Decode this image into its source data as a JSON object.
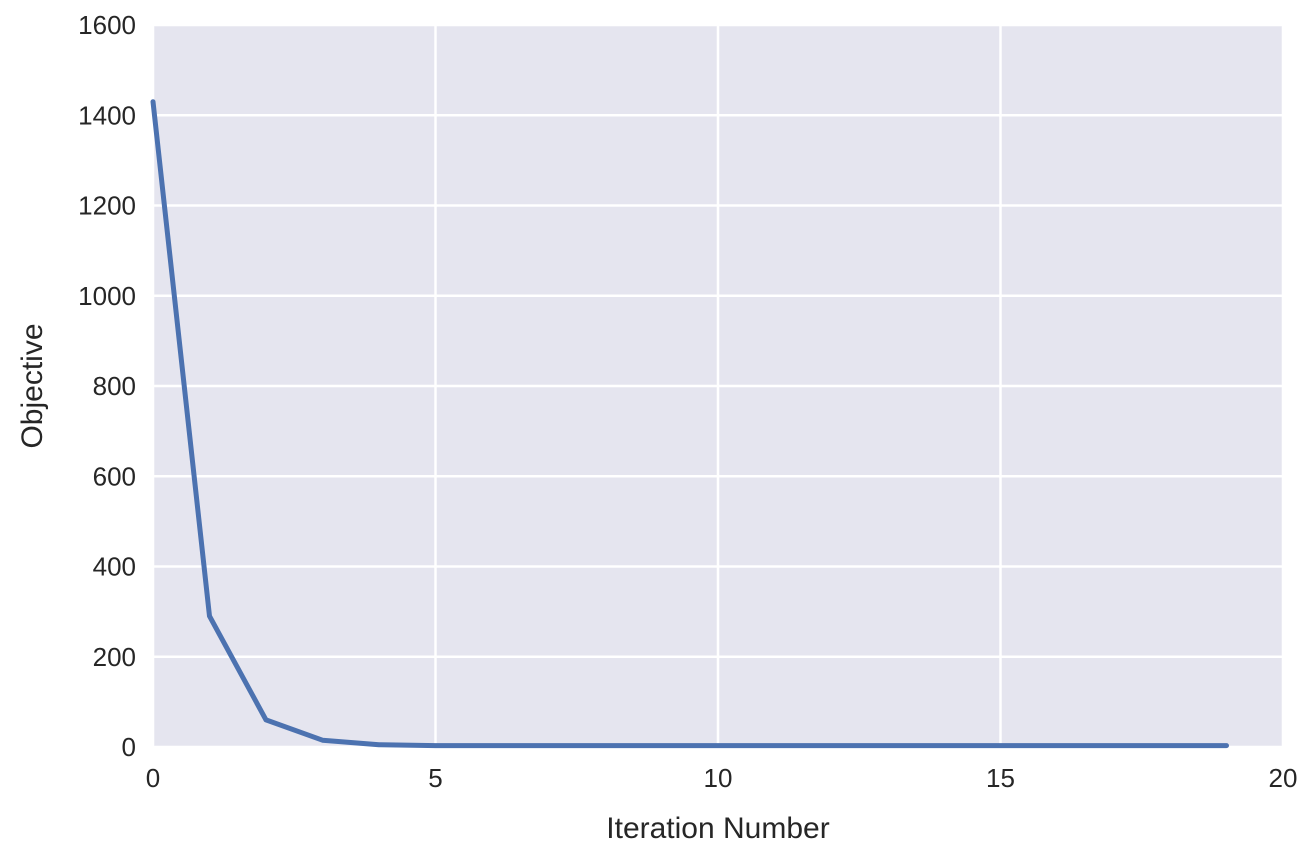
{
  "chart_data": {
    "type": "line",
    "title": "",
    "xlabel": "Iteration Number",
    "ylabel": "Objective",
    "xlim": [
      0,
      20
    ],
    "ylim": [
      0,
      1600
    ],
    "xticks": [
      0,
      5,
      10,
      15,
      20
    ],
    "yticks": [
      0,
      200,
      400,
      600,
      800,
      1000,
      1200,
      1400,
      1600
    ],
    "grid": true,
    "colors": {
      "background": "#e5e5ef",
      "grid": "#ffffff",
      "line": "#4c72b0"
    },
    "series": [
      {
        "x": [
          0,
          1,
          2,
          3,
          4,
          5,
          6,
          7,
          8,
          9,
          10,
          11,
          12,
          13,
          14,
          15,
          16,
          17,
          18,
          19
        ],
        "y": [
          1430,
          290,
          60,
          15,
          5,
          3,
          3,
          3,
          3,
          3,
          3,
          3,
          3,
          3,
          3,
          3,
          3,
          3,
          3,
          3
        ]
      }
    ]
  }
}
